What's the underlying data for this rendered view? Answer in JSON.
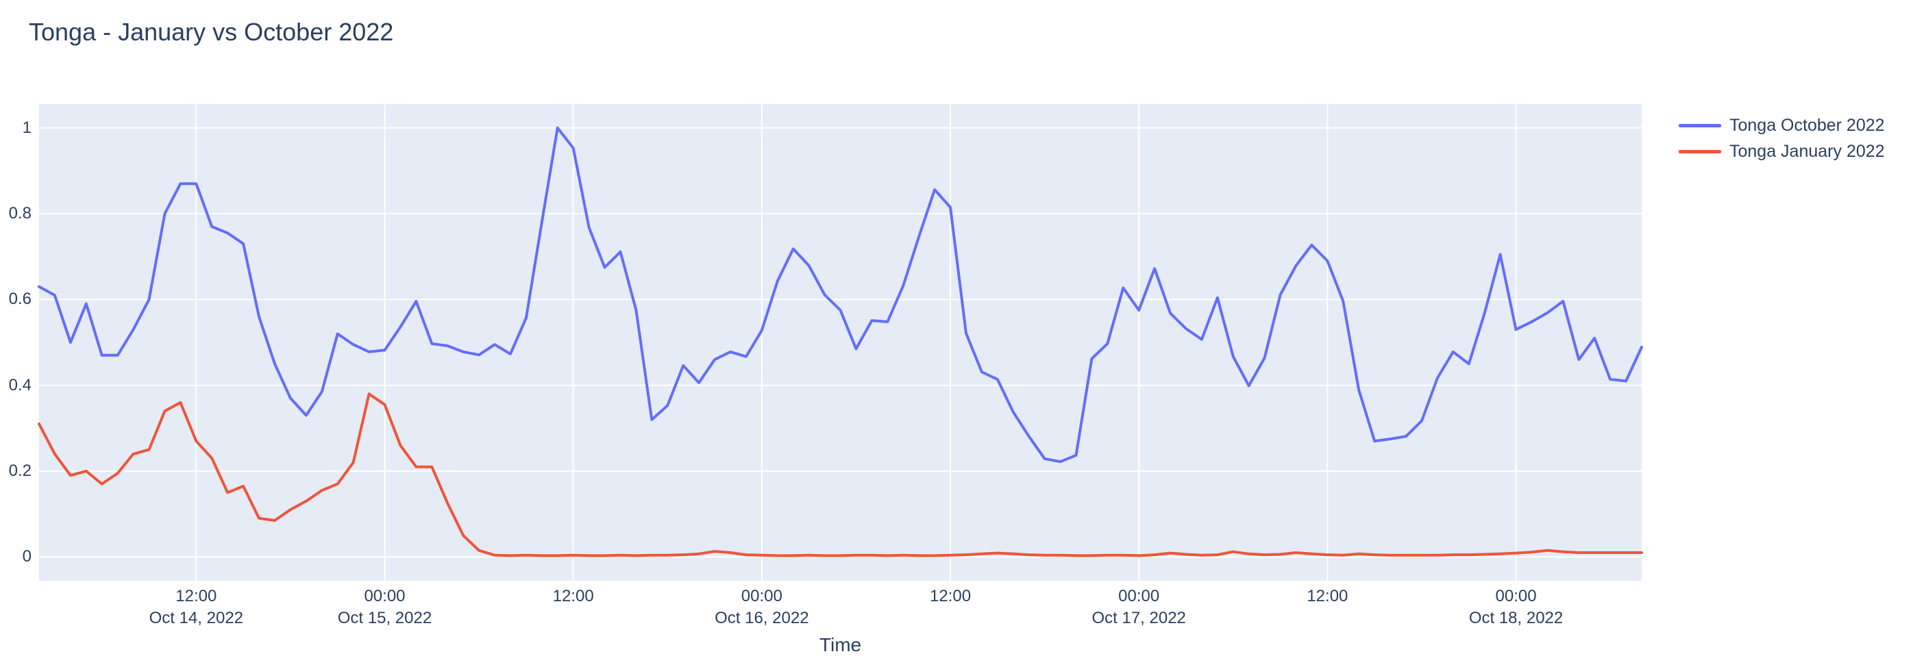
{
  "title": "Tonga - January vs October 2022",
  "x_axis": {
    "title": "Time"
  },
  "chart_data": {
    "type": "line",
    "title": "Tonga - January vs October 2022",
    "xlabel": "Time",
    "ylabel": "",
    "grid": true,
    "legend_position": "top-right",
    "x_start": "2022-10-14 02:00",
    "x_end": "2022-10-18 08:00",
    "x_step_hours": 1,
    "x_range_hours": [
      0,
      102
    ],
    "y_range": [
      -0.0555,
      1.0555
    ],
    "colors": {
      "paper_bg": "#FFFFFF",
      "plot_bg": "#E5ECF6",
      "grid": "#FFFFFF",
      "text": "#2A3F5F"
    },
    "x_ticks": [
      {
        "hour": 10,
        "time": "2022-10-14 12:00",
        "line1": "12:00",
        "line2": "Oct 14, 2022"
      },
      {
        "hour": 22,
        "time": "2022-10-15 00:00",
        "line1": "00:00",
        "line2": "Oct 15, 2022"
      },
      {
        "hour": 34,
        "time": "2022-10-15 12:00",
        "line1": "12:00",
        "line2": ""
      },
      {
        "hour": 46,
        "time": "2022-10-16 00:00",
        "line1": "00:00",
        "line2": "Oct 16, 2022"
      },
      {
        "hour": 58,
        "time": "2022-10-16 12:00",
        "line1": "12:00",
        "line2": ""
      },
      {
        "hour": 70,
        "time": "2022-10-17 00:00",
        "line1": "00:00",
        "line2": "Oct 17, 2022"
      },
      {
        "hour": 82,
        "time": "2022-10-17 12:00",
        "line1": "12:00",
        "line2": ""
      },
      {
        "hour": 94,
        "time": "2022-10-18 00:00",
        "line1": "00:00",
        "line2": "Oct 18, 2022"
      }
    ],
    "y_ticks": [
      {
        "value": 0,
        "label": "0"
      },
      {
        "value": 0.2,
        "label": "0.2"
      },
      {
        "value": 0.4,
        "label": "0.4"
      },
      {
        "value": 0.6,
        "label": "0.6"
      },
      {
        "value": 0.8,
        "label": "0.8"
      },
      {
        "value": 1,
        "label": "1"
      }
    ],
    "series": [
      {
        "name": "Tonga October 2022",
        "color": "#636EFA",
        "values": [
          0.63,
          0.61,
          0.5,
          0.59,
          0.47,
          0.47,
          0.53,
          0.6,
          0.8,
          0.87,
          0.87,
          0.77,
          0.755,
          0.73,
          0.56,
          0.45,
          0.37,
          0.33,
          0.385,
          0.52,
          0.495,
          0.478,
          0.482,
          0.536,
          0.596,
          0.497,
          0.492,
          0.478,
          0.471,
          0.495,
          0.473,
          0.557,
          0.78,
          1.0,
          0.953,
          0.768,
          0.675,
          0.711,
          0.575,
          0.32,
          0.353,
          0.446,
          0.406,
          0.46,
          0.478,
          0.467,
          0.528,
          0.643,
          0.718,
          0.679,
          0.611,
          0.575,
          0.485,
          0.551,
          0.548,
          0.632,
          0.747,
          0.856,
          0.815,
          0.521,
          0.431,
          0.414,
          0.338,
          0.281,
          0.229,
          0.222,
          0.237,
          0.462,
          0.497,
          0.627,
          0.575,
          0.672,
          0.568,
          0.532,
          0.507,
          0.604,
          0.467,
          0.399,
          0.464,
          0.611,
          0.679,
          0.727,
          0.69,
          0.596,
          0.389,
          0.27,
          0.275,
          0.281,
          0.317,
          0.417,
          0.478,
          0.45,
          0.568,
          0.705,
          0.53,
          0.548,
          0.569,
          0.596,
          0.46,
          0.51,
          0.414,
          0.41,
          0.489
        ]
      },
      {
        "name": "Tonga January 2022",
        "color": "#EF553B",
        "values": [
          0.31,
          0.24,
          0.19,
          0.2,
          0.17,
          0.195,
          0.24,
          0.25,
          0.34,
          0.36,
          0.27,
          0.23,
          0.15,
          0.165,
          0.09,
          0.085,
          0.11,
          0.13,
          0.155,
          0.17,
          0.22,
          0.38,
          0.355,
          0.26,
          0.21,
          0.21,
          0.125,
          0.05,
          0.015,
          0.004,
          0.003,
          0.004,
          0.003,
          0.003,
          0.004,
          0.003,
          0.003,
          0.004,
          0.003,
          0.004,
          0.004,
          0.005,
          0.007,
          0.013,
          0.01,
          0.005,
          0.004,
          0.003,
          0.003,
          0.004,
          0.003,
          0.003,
          0.004,
          0.004,
          0.003,
          0.004,
          0.003,
          0.003,
          0.004,
          0.005,
          0.007,
          0.009,
          0.007,
          0.005,
          0.004,
          0.004,
          0.003,
          0.003,
          0.004,
          0.004,
          0.003,
          0.005,
          0.009,
          0.006,
          0.004,
          0.005,
          0.012,
          0.007,
          0.005,
          0.006,
          0.01,
          0.007,
          0.005,
          0.004,
          0.007,
          0.005,
          0.004,
          0.004,
          0.004,
          0.004,
          0.005,
          0.005,
          0.006,
          0.007,
          0.009,
          0.011,
          0.015,
          0.012,
          0.01,
          0.01,
          0.01,
          0.01,
          0.01
        ]
      }
    ]
  }
}
